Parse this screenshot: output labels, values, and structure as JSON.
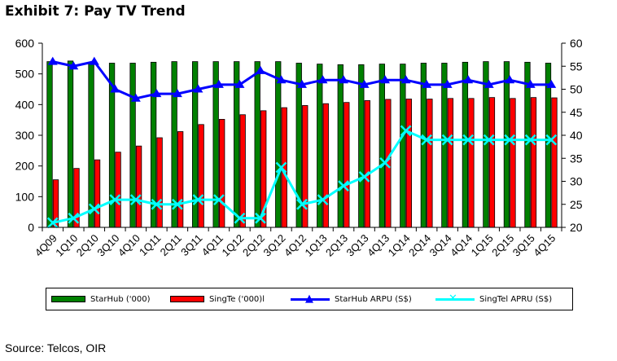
{
  "title": "Exhibit 7: Pay TV Trend",
  "source": "Source: Telcos, OIR",
  "colors": {
    "starhub_bar": "#008000",
    "singtel_bar": "#ff0000",
    "starhub_arpu": "#0000ff",
    "singtel_arpu": "#00ffff"
  },
  "chart_data": {
    "type": "bar",
    "categories": [
      "4Q09",
      "1Q10",
      "2Q10",
      "3Q10",
      "4Q10",
      "1Q11",
      "2Q11",
      "3Q11",
      "4Q11",
      "1Q12",
      "2Q12",
      "3Q12",
      "4Q12",
      "1Q13",
      "2Q13",
      "3Q13",
      "4Q13",
      "1Q14",
      "2Q14",
      "3Q14",
      "4Q14",
      "1Q15",
      "2Q15",
      "3Q15",
      "4Q15"
    ],
    "y_left": {
      "ylim": [
        0,
        600
      ],
      "ticks": [
        0,
        100,
        200,
        300,
        400,
        500,
        600
      ]
    },
    "y_right": {
      "ylim": [
        20,
        60
      ],
      "ticks": [
        20,
        25,
        30,
        35,
        40,
        45,
        50,
        55,
        60
      ]
    },
    "grid": false,
    "legend_position": "bottom",
    "series": [
      {
        "name": "StarHub ('000)",
        "type": "bar",
        "axis": "left",
        "values": [
          540,
          542,
          538,
          535,
          535,
          538,
          540,
          540,
          540,
          540,
          540,
          540,
          535,
          532,
          530,
          530,
          532,
          532,
          535,
          535,
          538,
          540,
          540,
          538,
          535
        ]
      },
      {
        "name": "SingTe ('000)l",
        "type": "bar",
        "axis": "left",
        "values": [
          155,
          192,
          220,
          245,
          265,
          292,
          312,
          335,
          352,
          367,
          380,
          390,
          397,
          403,
          407,
          413,
          417,
          418,
          418,
          420,
          420,
          423,
          420,
          423,
          422
        ]
      },
      {
        "name": "StarHub ARPU (S$)",
        "type": "line",
        "axis": "right",
        "marker": "triangle",
        "values": [
          56,
          55,
          56,
          50,
          48,
          49,
          49,
          50,
          51,
          51,
          54,
          52,
          51,
          52,
          52,
          51,
          52,
          52,
          51,
          51,
          52,
          51,
          52,
          51,
          51
        ]
      },
      {
        "name": "SingTel APRU (S$)",
        "type": "line",
        "axis": "right",
        "marker": "x",
        "values": [
          21,
          22,
          24,
          26,
          26,
          25,
          25,
          26,
          26,
          22,
          22,
          33,
          25,
          26,
          29,
          31,
          34,
          41,
          39,
          39,
          39,
          39,
          39,
          39,
          39
        ]
      }
    ]
  }
}
